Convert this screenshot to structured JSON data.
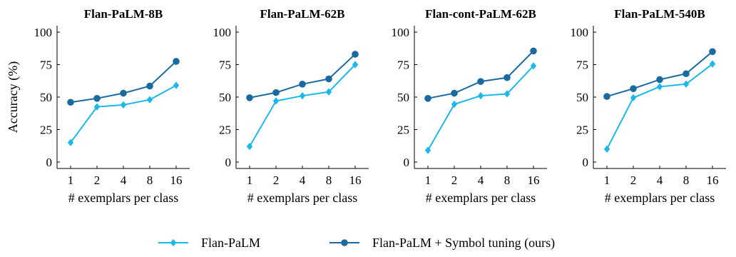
{
  "colors": {
    "flan": "#1ab9ea",
    "symbol": "#1a6aa0",
    "axis": "#000000"
  },
  "legend": {
    "placement": "bottom-center",
    "items": [
      {
        "label": "Flan-PaLM",
        "marker": "diamond",
        "color": "#1ab9ea"
      },
      {
        "label": "Flan-PaLM + Symbol tuning (ours)",
        "marker": "circle",
        "color": "#1a6aa0"
      }
    ]
  },
  "chart_data": [
    {
      "type": "line",
      "title": "Flan-PaLM-8B",
      "xlabel": "# exemplars per class",
      "ylabel": "Accuracy (%)",
      "categories": [
        "1",
        "2",
        "4",
        "8",
        "16"
      ],
      "ylim": [
        0,
        100
      ],
      "yticks": [
        "0",
        "25",
        "50",
        "75",
        "100"
      ],
      "grid": false,
      "series": [
        {
          "name": "Flan-PaLM",
          "values": [
            15,
            42.5,
            44,
            48,
            59
          ]
        },
        {
          "name": "Flan-PaLM + Symbol tuning (ours)",
          "values": [
            46,
            49,
            53,
            58.5,
            77.5
          ]
        }
      ]
    },
    {
      "type": "line",
      "title": "Flan-PaLM-62B",
      "xlabel": "# exemplars per class",
      "ylabel": "",
      "categories": [
        "1",
        "2",
        "4",
        "8",
        "16"
      ],
      "ylim": [
        0,
        100
      ],
      "yticks": [
        "0",
        "25",
        "50",
        "75",
        "100"
      ],
      "grid": false,
      "series": [
        {
          "name": "Flan-PaLM",
          "values": [
            12,
            47,
            51,
            54,
            75
          ]
        },
        {
          "name": "Flan-PaLM + Symbol tuning (ours)",
          "values": [
            49.5,
            53.5,
            60,
            64,
            83
          ]
        }
      ]
    },
    {
      "type": "line",
      "title": "Flan-cont-PaLM-62B",
      "xlabel": "# exemplars per class",
      "ylabel": "",
      "categories": [
        "1",
        "2",
        "4",
        "8",
        "16"
      ],
      "ylim": [
        0,
        100
      ],
      "yticks": [
        "0",
        "25",
        "50",
        "75",
        "100"
      ],
      "grid": false,
      "series": [
        {
          "name": "Flan-PaLM",
          "values": [
            9,
            44.5,
            51,
            52.5,
            74
          ]
        },
        {
          "name": "Flan-PaLM + Symbol tuning (ours)",
          "values": [
            49,
            53,
            62,
            65,
            85.5
          ]
        }
      ]
    },
    {
      "type": "line",
      "title": "Flan-PaLM-540B",
      "xlabel": "# exemplars per class",
      "ylabel": "",
      "categories": [
        "1",
        "2",
        "4",
        "8",
        "16"
      ],
      "ylim": [
        0,
        100
      ],
      "yticks": [
        "0",
        "25",
        "50",
        "75",
        "100"
      ],
      "grid": false,
      "series": [
        {
          "name": "Flan-PaLM",
          "values": [
            10,
            49.5,
            58,
            60,
            75.5
          ]
        },
        {
          "name": "Flan-PaLM + Symbol tuning (ours)",
          "values": [
            50.5,
            56.5,
            63.5,
            68,
            85
          ]
        }
      ]
    }
  ]
}
